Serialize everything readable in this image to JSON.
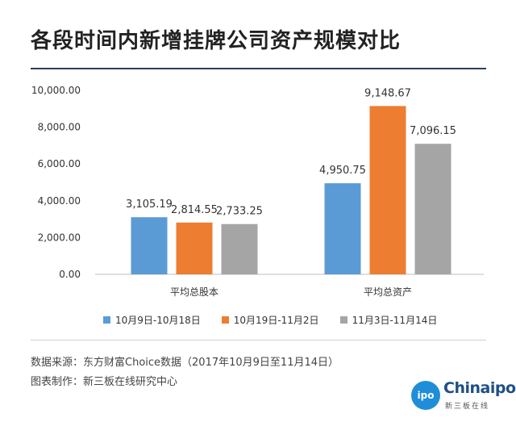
{
  "title": "各段时间内新增挂牌公司资产规模对比",
  "chart_data": {
    "type": "bar",
    "categories": [
      "平均总股本",
      "平均总资产"
    ],
    "series": [
      {
        "name": "10月9日-10月18日",
        "values": [
          3105.19,
          4950.75
        ],
        "labels": [
          "3,105.19",
          "4,950.75"
        ],
        "color": "#5b9bd5"
      },
      {
        "name": "10月19日-11月2日",
        "values": [
          2814.55,
          9148.67
        ],
        "labels": [
          "2,814.55",
          "9,148.67"
        ],
        "color": "#ed7d31"
      },
      {
        "name": "11月3日-11月14日",
        "values": [
          2733.25,
          7096.15
        ],
        "labels": [
          "2,733.25",
          "7,096.15"
        ],
        "color": "#a5a5a5"
      }
    ],
    "ylim": [
      0,
      10000
    ],
    "yticks": [
      "0.00",
      "2,000.00",
      "4,000.00",
      "6,000.00",
      "8,000.00",
      "10,000.00"
    ],
    "ytick_values": [
      0,
      2000,
      4000,
      6000,
      8000,
      10000
    ],
    "legend_position": "bottom",
    "grid": false
  },
  "footer": {
    "source": "数据来源：东方财富Choice数据（2017年10月9日至11月14日）",
    "credit": "图表制作：新三板在线研究中心"
  },
  "logo": {
    "badge": "ipo",
    "word": "Chinaipo",
    "sub": "新三板在线"
  }
}
